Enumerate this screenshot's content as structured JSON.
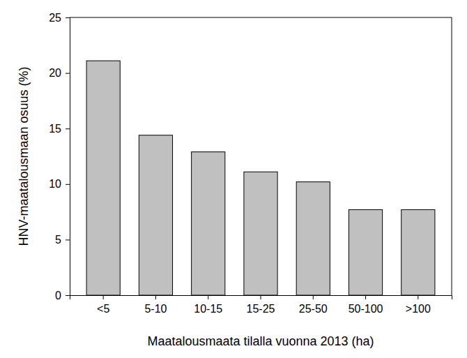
{
  "chart_data": {
    "type": "bar",
    "categories": [
      "<5",
      "5-10",
      "10-15",
      "15-25",
      "25-50",
      "50-100",
      ">100"
    ],
    "values": [
      21.1,
      14.4,
      12.9,
      11.1,
      10.2,
      7.7,
      7.7
    ],
    "color": "#c0c0c0",
    "x_label": "Maatalousmaata tilalla vuonna 2013 (ha)",
    "y_label": "HNV-maatalousmaan osuus (%)",
    "ylim": [
      0,
      25
    ],
    "yticks": [
      0,
      5,
      10,
      15,
      20,
      25
    ],
    "grid": false
  }
}
